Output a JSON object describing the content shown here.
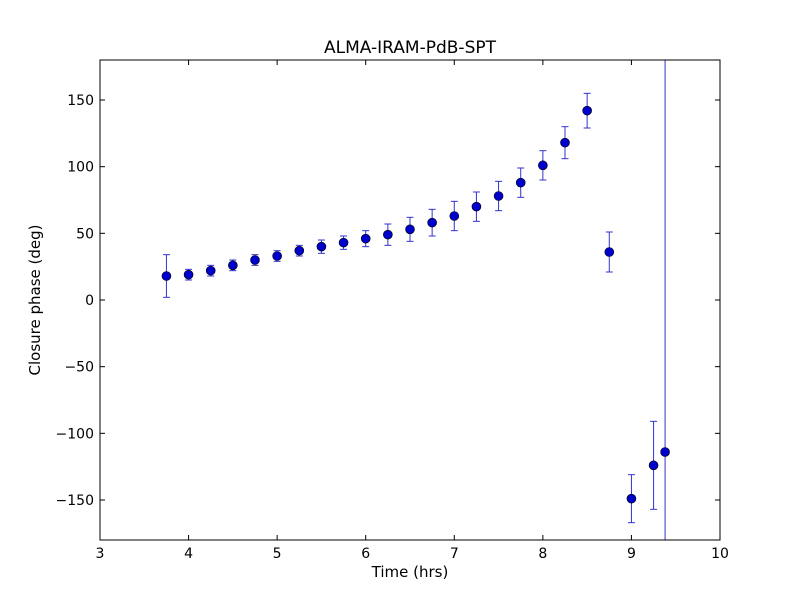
{
  "chart_data": {
    "type": "scatter",
    "title": "ALMA-IRAM-PdB-SPT",
    "xlabel": "Time (hrs)",
    "ylabel": "Closure phase (deg)",
    "xlim": [
      3,
      10
    ],
    "ylim": [
      -180,
      180
    ],
    "xticks": [
      3,
      4,
      5,
      6,
      7,
      8,
      9,
      10
    ],
    "xtick_labels": [
      "3",
      "4",
      "5",
      "6",
      "7",
      "8",
      "9",
      "10"
    ],
    "yticks": [
      -150,
      -100,
      -50,
      0,
      50,
      100,
      150
    ],
    "ytick_labels": [
      "−150",
      "−100",
      "−50",
      "0",
      "50",
      "100",
      "150"
    ],
    "grid": false,
    "series": [
      {
        "marker_color": "#0000cc",
        "errorbar_color": "#3333cc",
        "points": [
          {
            "x": 3.75,
            "y": 18,
            "err": 16
          },
          {
            "x": 4.0,
            "y": 19,
            "err": 4
          },
          {
            "x": 4.25,
            "y": 22,
            "err": 4
          },
          {
            "x": 4.5,
            "y": 26,
            "err": 4
          },
          {
            "x": 4.75,
            "y": 30,
            "err": 4
          },
          {
            "x": 5.0,
            "y": 33,
            "err": 4
          },
          {
            "x": 5.25,
            "y": 37,
            "err": 4
          },
          {
            "x": 5.5,
            "y": 40,
            "err": 5
          },
          {
            "x": 5.75,
            "y": 43,
            "err": 5
          },
          {
            "x": 6.0,
            "y": 46,
            "err": 6
          },
          {
            "x": 6.25,
            "y": 49,
            "err": 8
          },
          {
            "x": 6.5,
            "y": 53,
            "err": 9
          },
          {
            "x": 6.75,
            "y": 58,
            "err": 10
          },
          {
            "x": 7.0,
            "y": 63,
            "err": 11
          },
          {
            "x": 7.25,
            "y": 70,
            "err": 11
          },
          {
            "x": 7.5,
            "y": 78,
            "err": 11
          },
          {
            "x": 7.75,
            "y": 88,
            "err": 11
          },
          {
            "x": 8.0,
            "y": 101,
            "err": 11
          },
          {
            "x": 8.25,
            "y": 118,
            "err": 12
          },
          {
            "x": 8.5,
            "y": 142,
            "err": 13
          },
          {
            "x": 8.75,
            "y": 36,
            "err": 15
          },
          {
            "x": 9.0,
            "y": -149,
            "err": 18
          },
          {
            "x": 9.25,
            "y": -124,
            "err": 33
          },
          {
            "x": 9.38,
            "y": -114,
            "err": 800
          }
        ]
      }
    ]
  }
}
